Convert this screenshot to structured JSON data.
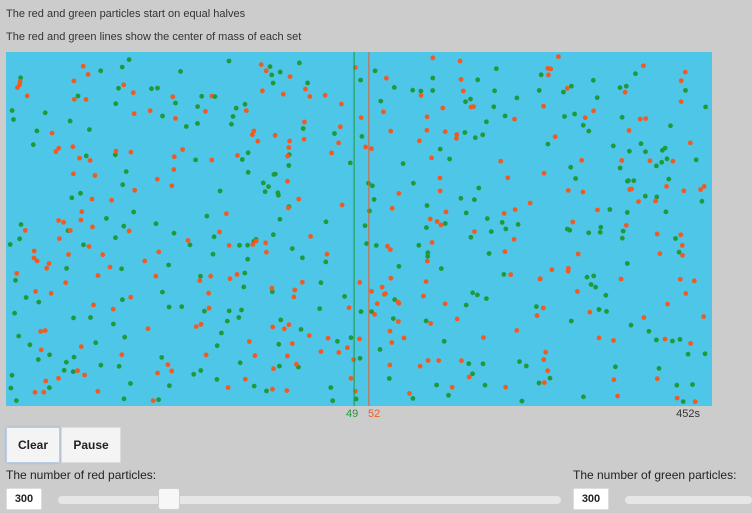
{
  "captions": {
    "line1": "The red and green particles start on equal halves",
    "line2": "The red and green lines show the center of mass of each set"
  },
  "simulation": {
    "background_color": "#4ec6e8",
    "red_color": "#f25a22",
    "green_color": "#1f9a3a",
    "green_center_of_mass": "49",
    "red_center_of_mass": "52",
    "elapsed_time": "452s"
  },
  "controls": {
    "clear_label": "Clear",
    "pause_label": "Pause",
    "red_count_label": "The number of red particles:",
    "red_count_value": "300",
    "green_count_label": "The number of green particles:",
    "green_count_value": "300"
  }
}
